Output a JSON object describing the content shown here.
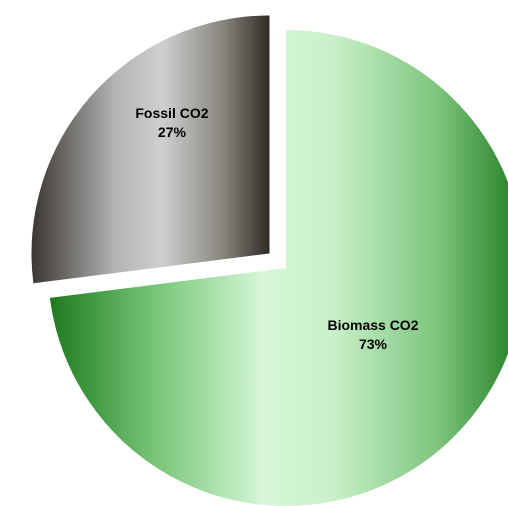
{
  "chart_data": {
    "type": "pie",
    "slices": [
      {
        "label": "Biomass CO2",
        "value": 73,
        "percent_label": "73%",
        "color": "#2e8b2e",
        "exploded": false
      },
      {
        "label": "Fossil CO2",
        "value": 27,
        "percent_label": "27%",
        "color": "#4a4438",
        "exploded": true
      }
    ],
    "legend": "none",
    "start_angle": "12 o'clock",
    "direction": "clockwise"
  }
}
